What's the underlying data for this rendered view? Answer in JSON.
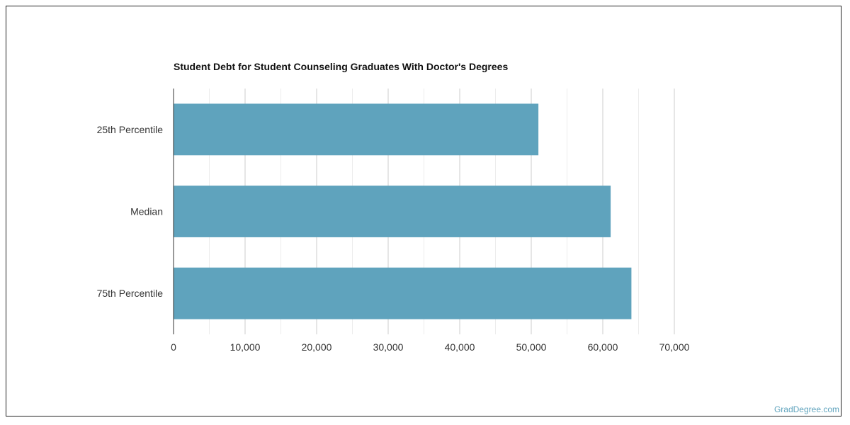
{
  "chart_data": {
    "type": "bar",
    "orientation": "horizontal",
    "title": "Student Debt for Student Counseling Graduates With Doctor's Degrees",
    "categories": [
      "25th Percentile",
      "Median",
      "75th Percentile"
    ],
    "values": [
      51000,
      61100,
      64000
    ],
    "xlim": [
      0,
      70000
    ],
    "x_ticks": [
      0,
      10000,
      20000,
      30000,
      40000,
      50000,
      60000,
      70000
    ],
    "x_tick_labels": [
      "0",
      "10,000",
      "20,000",
      "30,000",
      "40,000",
      "50,000",
      "60,000",
      "70,000"
    ],
    "xlabel": "",
    "ylabel": "",
    "grid": true,
    "legend": "none",
    "bar_color": "#5fa3bd"
  },
  "credit": "GradDegree.com"
}
